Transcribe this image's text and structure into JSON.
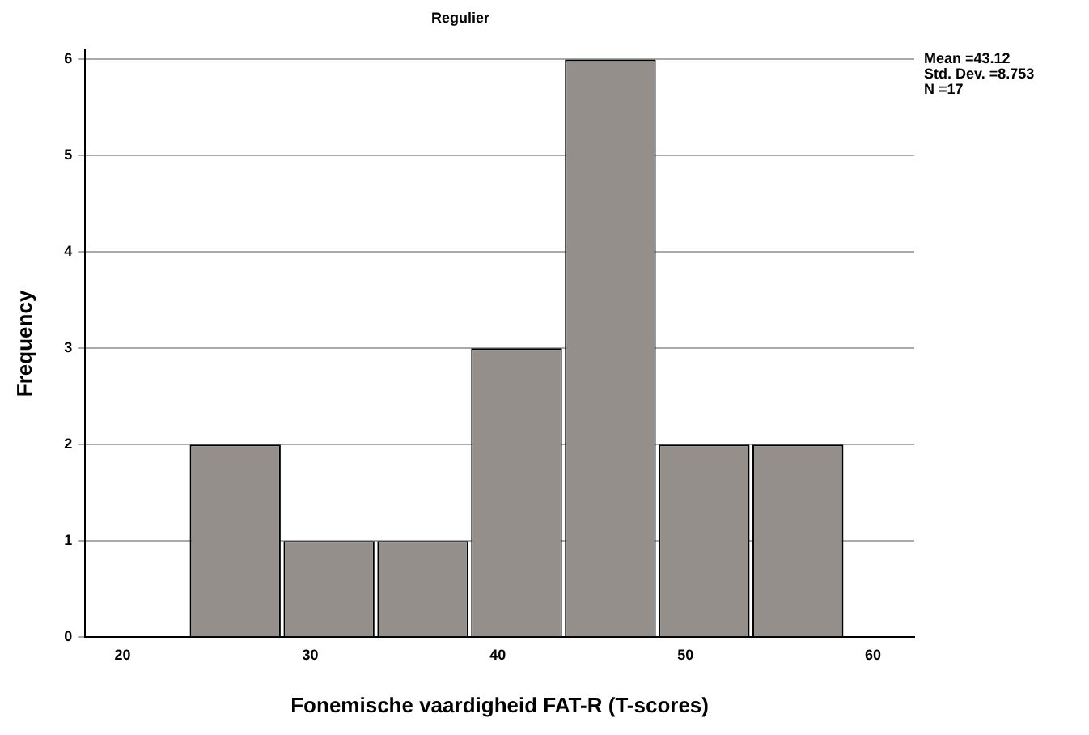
{
  "chart_data": {
    "type": "histogram",
    "title": "Regulier",
    "xlabel": "Fonemische vaardigheid FAT-R (T-scores)",
    "ylabel": "Frequency",
    "bins": [
      23.5,
      28.5,
      33.5,
      38.5,
      43.5,
      48.5,
      53.5,
      58.5
    ],
    "values": [
      2,
      1,
      1,
      3,
      6,
      2,
      2
    ],
    "color": "#958f8c",
    "xlim": [
      18,
      62.2
    ],
    "xticks": [
      20,
      30,
      40,
      50,
      60
    ],
    "ylim": [
      0,
      6.1
    ],
    "yticks": [
      0,
      1,
      2,
      3,
      4,
      5,
      6
    ],
    "grid": "y",
    "legend": false,
    "annotations": [
      "Mean =43.12",
      "Std. Dev. =8.753",
      "N =17"
    ]
  }
}
